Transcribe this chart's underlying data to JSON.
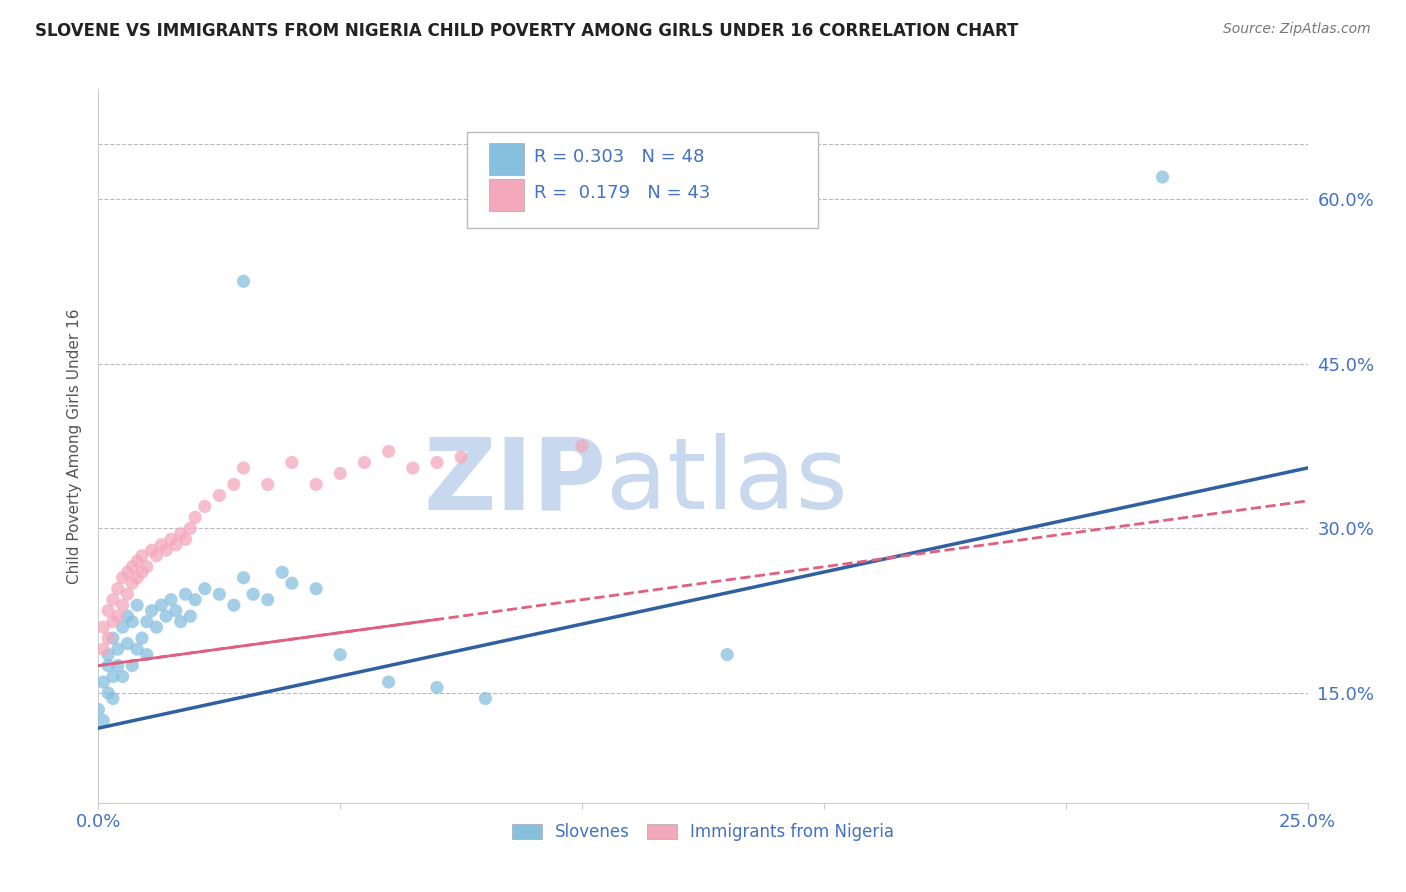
{
  "title": "SLOVENE VS IMMIGRANTS FROM NIGERIA CHILD POVERTY AMONG GIRLS UNDER 16 CORRELATION CHART",
  "source": "Source: ZipAtlas.com",
  "ylabel": "Child Poverty Among Girls Under 16",
  "xlim": [
    0.0,
    0.25
  ],
  "ylim": [
    0.05,
    0.7
  ],
  "ytick_positions": [
    0.15,
    0.3,
    0.45,
    0.6
  ],
  "ytick_labels": [
    "15.0%",
    "30.0%",
    "45.0%",
    "60.0%"
  ],
  "series1_color": "#87BFDF",
  "series2_color": "#F4A8BC",
  "line1_color": "#3060A0",
  "line2_color": "#E06080",
  "R1": 0.303,
  "N1": 48,
  "R2": 0.179,
  "N2": 43,
  "legend_labels": [
    "Slovenes",
    "Immigrants from Nigeria"
  ],
  "watermark_zip": "ZIP",
  "watermark_atlas": "atlas",
  "axis_color": "#4472c4",
  "slovenes_x": [
    0.0,
    0.001,
    0.001,
    0.002,
    0.002,
    0.002,
    0.003,
    0.003,
    0.003,
    0.004,
    0.004,
    0.005,
    0.005,
    0.006,
    0.006,
    0.007,
    0.007,
    0.008,
    0.008,
    0.009,
    0.01,
    0.01,
    0.011,
    0.012,
    0.013,
    0.014,
    0.015,
    0.016,
    0.017,
    0.018,
    0.019,
    0.02,
    0.022,
    0.025,
    0.028,
    0.03,
    0.032,
    0.035,
    0.038,
    0.04,
    0.045,
    0.05,
    0.06,
    0.07,
    0.08,
    0.03,
    0.22,
    0.13
  ],
  "slovenes_y": [
    0.135,
    0.16,
    0.125,
    0.175,
    0.15,
    0.185,
    0.165,
    0.2,
    0.145,
    0.19,
    0.175,
    0.21,
    0.165,
    0.22,
    0.195,
    0.215,
    0.175,
    0.23,
    0.19,
    0.2,
    0.215,
    0.185,
    0.225,
    0.21,
    0.23,
    0.22,
    0.235,
    0.225,
    0.215,
    0.24,
    0.22,
    0.235,
    0.245,
    0.24,
    0.23,
    0.255,
    0.24,
    0.235,
    0.26,
    0.25,
    0.245,
    0.185,
    0.16,
    0.155,
    0.145,
    0.525,
    0.62,
    0.185
  ],
  "nigeria_x": [
    0.001,
    0.001,
    0.002,
    0.002,
    0.003,
    0.003,
    0.004,
    0.004,
    0.005,
    0.005,
    0.006,
    0.006,
    0.007,
    0.007,
    0.008,
    0.008,
    0.009,
    0.009,
    0.01,
    0.011,
    0.012,
    0.013,
    0.014,
    0.015,
    0.016,
    0.017,
    0.018,
    0.019,
    0.02,
    0.022,
    0.025,
    0.028,
    0.03,
    0.035,
    0.04,
    0.045,
    0.05,
    0.055,
    0.06,
    0.065,
    0.07,
    0.075,
    0.1
  ],
  "nigeria_y": [
    0.19,
    0.21,
    0.2,
    0.225,
    0.215,
    0.235,
    0.22,
    0.245,
    0.23,
    0.255,
    0.24,
    0.26,
    0.25,
    0.265,
    0.255,
    0.27,
    0.26,
    0.275,
    0.265,
    0.28,
    0.275,
    0.285,
    0.28,
    0.29,
    0.285,
    0.295,
    0.29,
    0.3,
    0.31,
    0.32,
    0.33,
    0.34,
    0.355,
    0.34,
    0.36,
    0.34,
    0.35,
    0.36,
    0.37,
    0.355,
    0.36,
    0.365,
    0.375
  ],
  "line1_x0": 0.0,
  "line1_y0": 0.118,
  "line1_x1": 0.25,
  "line1_y1": 0.355,
  "line2_x0": 0.0,
  "line2_y0": 0.175,
  "line2_x1": 0.25,
  "line2_y1": 0.325
}
